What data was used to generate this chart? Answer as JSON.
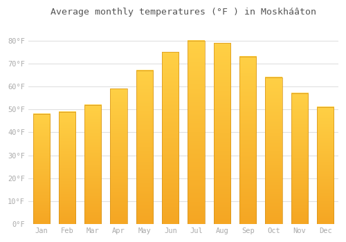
{
  "title": "Average monthly temperatures (°F ) in Moskháâton",
  "months": [
    "Jan",
    "Feb",
    "Mar",
    "Apr",
    "May",
    "Jun",
    "Jul",
    "Aug",
    "Sep",
    "Oct",
    "Nov",
    "Dec"
  ],
  "values": [
    48,
    49,
    52,
    59,
    67,
    75,
    80,
    79,
    73,
    64,
    57,
    51
  ],
  "bar_color_top": "#FFD045",
  "bar_color_bottom": "#F5A623",
  "background_color": "#FFFFFF",
  "grid_color": "#E0E0E0",
  "tick_color": "#AAAAAA",
  "title_color": "#555555",
  "ylim_max": 88,
  "yticks": [
    0,
    10,
    20,
    30,
    40,
    50,
    60,
    70,
    80
  ],
  "figsize": [
    5.0,
    3.5
  ],
  "dpi": 100,
  "bar_width": 0.65
}
